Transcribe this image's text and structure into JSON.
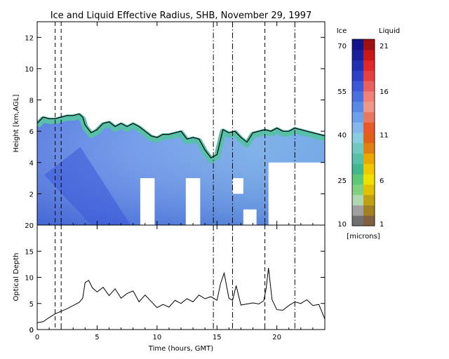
{
  "chart_data": [
    {
      "type": "heatmap",
      "title": "Ice and Liquid Effective Radius, SHB, November 29, 1997",
      "ylabel": "Height [km,AGL]",
      "xlim": [
        0,
        24
      ],
      "ylim": [
        0,
        13
      ],
      "x_ticks": [
        0,
        5,
        10,
        15,
        20
      ],
      "y_ticks": [
        2,
        4,
        6,
        8,
        10,
        12
      ],
      "grid": false,
      "cloud_top_km": [
        [
          0.0,
          6.5
        ],
        [
          0.5,
          6.9
        ],
        [
          1.0,
          6.8
        ],
        [
          1.5,
          6.8
        ],
        [
          2.0,
          6.9
        ],
        [
          2.5,
          7.0
        ],
        [
          3.0,
          7.0
        ],
        [
          3.5,
          7.1
        ],
        [
          3.8,
          6.9
        ],
        [
          4.0,
          6.4
        ],
        [
          4.5,
          5.9
        ],
        [
          5.0,
          6.1
        ],
        [
          5.5,
          6.5
        ],
        [
          6.0,
          6.6
        ],
        [
          6.5,
          6.3
        ],
        [
          7.0,
          6.5
        ],
        [
          7.5,
          6.3
        ],
        [
          8.0,
          6.5
        ],
        [
          8.5,
          6.3
        ],
        [
          9.0,
          6.0
        ],
        [
          9.5,
          5.7
        ],
        [
          10.0,
          5.6
        ],
        [
          10.5,
          5.8
        ],
        [
          11.0,
          5.8
        ],
        [
          11.5,
          5.9
        ],
        [
          12.0,
          6.0
        ],
        [
          12.5,
          5.5
        ],
        [
          13.0,
          5.6
        ],
        [
          13.5,
          5.5
        ],
        [
          14.0,
          4.8
        ],
        [
          14.5,
          4.3
        ],
        [
          15.0,
          4.5
        ],
        [
          15.5,
          6.1
        ],
        [
          16.0,
          5.9
        ],
        [
          16.5,
          6.0
        ],
        [
          17.0,
          5.6
        ],
        [
          17.5,
          5.3
        ],
        [
          18.0,
          5.9
        ],
        [
          18.5,
          6.0
        ],
        [
          19.0,
          6.1
        ],
        [
          19.5,
          6.0
        ],
        [
          20.0,
          6.2
        ],
        [
          20.5,
          6.0
        ],
        [
          21.0,
          6.0
        ],
        [
          21.5,
          6.2
        ],
        [
          22.0,
          6.1
        ],
        [
          22.5,
          6.0
        ],
        [
          23.0,
          5.9
        ],
        [
          23.5,
          5.8
        ],
        [
          24.0,
          5.7
        ]
      ],
      "missing_data_blocks": [
        {
          "x": [
            8.6,
            9.8
          ],
          "y": [
            0,
            3.0
          ]
        },
        {
          "x": [
            12.4,
            13.6
          ],
          "y": [
            0,
            3.0
          ]
        },
        {
          "x": [
            16.3,
            17.2
          ],
          "y": [
            2.0,
            3.0
          ]
        },
        {
          "x": [
            17.2,
            18.3
          ],
          "y": [
            0,
            1.0
          ]
        },
        {
          "x": [
            19.3,
            24.0
          ],
          "y": [
            0,
            4.0
          ]
        }
      ],
      "vertical_markers": [
        {
          "x": 1.5,
          "style": "dashed"
        },
        {
          "x": 2.0,
          "style": "dashed"
        },
        {
          "x": 14.7,
          "style": "dashdot"
        },
        {
          "x": 16.3,
          "style": "dashdot"
        },
        {
          "x": 19.0,
          "style": "dashed"
        },
        {
          "x": 21.5,
          "style": "dashdot"
        }
      ]
    },
    {
      "type": "line",
      "ylabel": "Optical Depth",
      "xlabel": "Time (hours, GMT)",
      "xlim": [
        0,
        24
      ],
      "ylim": [
        0,
        20
      ],
      "x_ticks": [
        0,
        5,
        10,
        15,
        20
      ],
      "y_ticks": [
        0,
        5,
        10,
        15,
        20
      ],
      "grid": false,
      "x": [
        0,
        0.5,
        1.0,
        1.5,
        2.0,
        2.5,
        3.0,
        3.5,
        3.8,
        4.0,
        4.3,
        4.6,
        5.0,
        5.5,
        6.0,
        6.5,
        7.0,
        7.5,
        8.0,
        8.5,
        9.0,
        9.5,
        10.0,
        10.5,
        11.0,
        11.5,
        12.0,
        12.5,
        13.0,
        13.5,
        14.0,
        14.5,
        15.0,
        15.3,
        15.6,
        16.0,
        16.3,
        16.6,
        17.0,
        17.5,
        18.0,
        18.5,
        18.9,
        19.1,
        19.3,
        19.6,
        20.0,
        20.5,
        21.0,
        21.5,
        22.0,
        22.5,
        23.0,
        23.5,
        24.0
      ],
      "y": [
        1.3,
        1.5,
        2.3,
        3.0,
        3.5,
        4.0,
        4.6,
        5.2,
        6.0,
        9.0,
        9.4,
        8.0,
        7.2,
        8.1,
        6.5,
        7.8,
        6.0,
        6.9,
        7.4,
        5.3,
        6.6,
        5.4,
        4.2,
        4.8,
        4.3,
        5.6,
        5.0,
        5.9,
        5.3,
        6.6,
        5.9,
        6.3,
        5.6,
        8.8,
        10.8,
        6.0,
        5.6,
        8.4,
        4.7,
        4.9,
        5.1,
        4.9,
        5.5,
        7.8,
        11.8,
        5.7,
        3.8,
        3.7,
        4.6,
        5.3,
        5.0,
        5.7,
        4.6,
        4.8,
        2.0
      ],
      "vertical_markers": [
        {
          "x": 1.5,
          "style": "dashed"
        },
        {
          "x": 2.0,
          "style": "dashed"
        },
        {
          "x": 14.7,
          "style": "dashdot"
        },
        {
          "x": 16.3,
          "style": "dashdot"
        },
        {
          "x": 19.0,
          "style": "dashed"
        },
        {
          "x": 21.5,
          "style": "dashdot"
        }
      ]
    }
  ],
  "colorbar": {
    "ice_header": "Ice",
    "liquid_header": "Liquid",
    "units": "[microns]",
    "ice_labels": [
      "70",
      "55",
      "40",
      "25",
      "10"
    ],
    "liquid_labels": [
      "21",
      "16",
      "11",
      "6",
      "1"
    ],
    "ice_colors": [
      "#707070",
      "#a0a0a0",
      "#b0d8b0",
      "#80d080",
      "#5cc878",
      "#40b890",
      "#58c0a8",
      "#70c8c0",
      "#88cce0",
      "#84b8ec",
      "#6ea0ec",
      "#5a88e8",
      "#4a70e0",
      "#3a58d8",
      "#2c40c8",
      "#2030b0",
      "#18209c",
      "#101488"
    ],
    "liquid_colors": [
      "#806040",
      "#a08020",
      "#c0a010",
      "#e0c000",
      "#f0e000",
      "#f0c800",
      "#e8a800",
      "#e08010",
      "#e06018",
      "#e85828",
      "#e87860",
      "#f09888",
      "#f08078",
      "#e86060",
      "#e84040",
      "#e02828",
      "#c81818",
      "#a01010"
    ]
  }
}
